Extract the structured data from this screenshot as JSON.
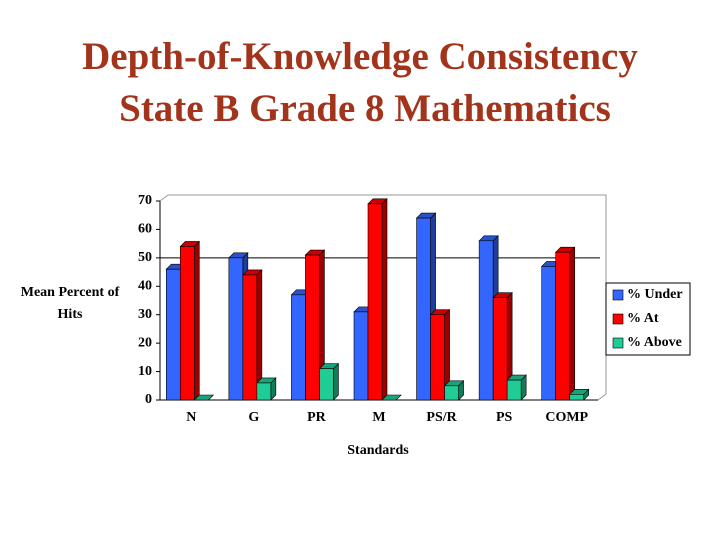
{
  "chart_data": {
    "type": "bar",
    "title": "Depth-of-Knowledge Consistency",
    "subtitle": "State B Grade 8 Mathematics",
    "xlabel": "Standards",
    "ylabel": "Mean Percent of Hits",
    "categories": [
      "N",
      "G",
      "PR",
      "M",
      "PS/R",
      "PS",
      "COMP"
    ],
    "series": [
      {
        "name": "% Under",
        "color": "#3366ff",
        "values": [
          46,
          50,
          37,
          31,
          64,
          56,
          47
        ]
      },
      {
        "name": "% At",
        "color": "#ff0000",
        "values": [
          54,
          44,
          51,
          69,
          30,
          36,
          52
        ]
      },
      {
        "name": "% Above",
        "color": "#1fcc96",
        "values": [
          0,
          6,
          11,
          0,
          5,
          7,
          2
        ]
      }
    ],
    "ylim": [
      0,
      70
    ],
    "yticks": [
      0,
      10,
      20,
      30,
      40,
      50,
      60,
      70
    ],
    "reference_line": 50,
    "grid": false,
    "legend": "right"
  }
}
